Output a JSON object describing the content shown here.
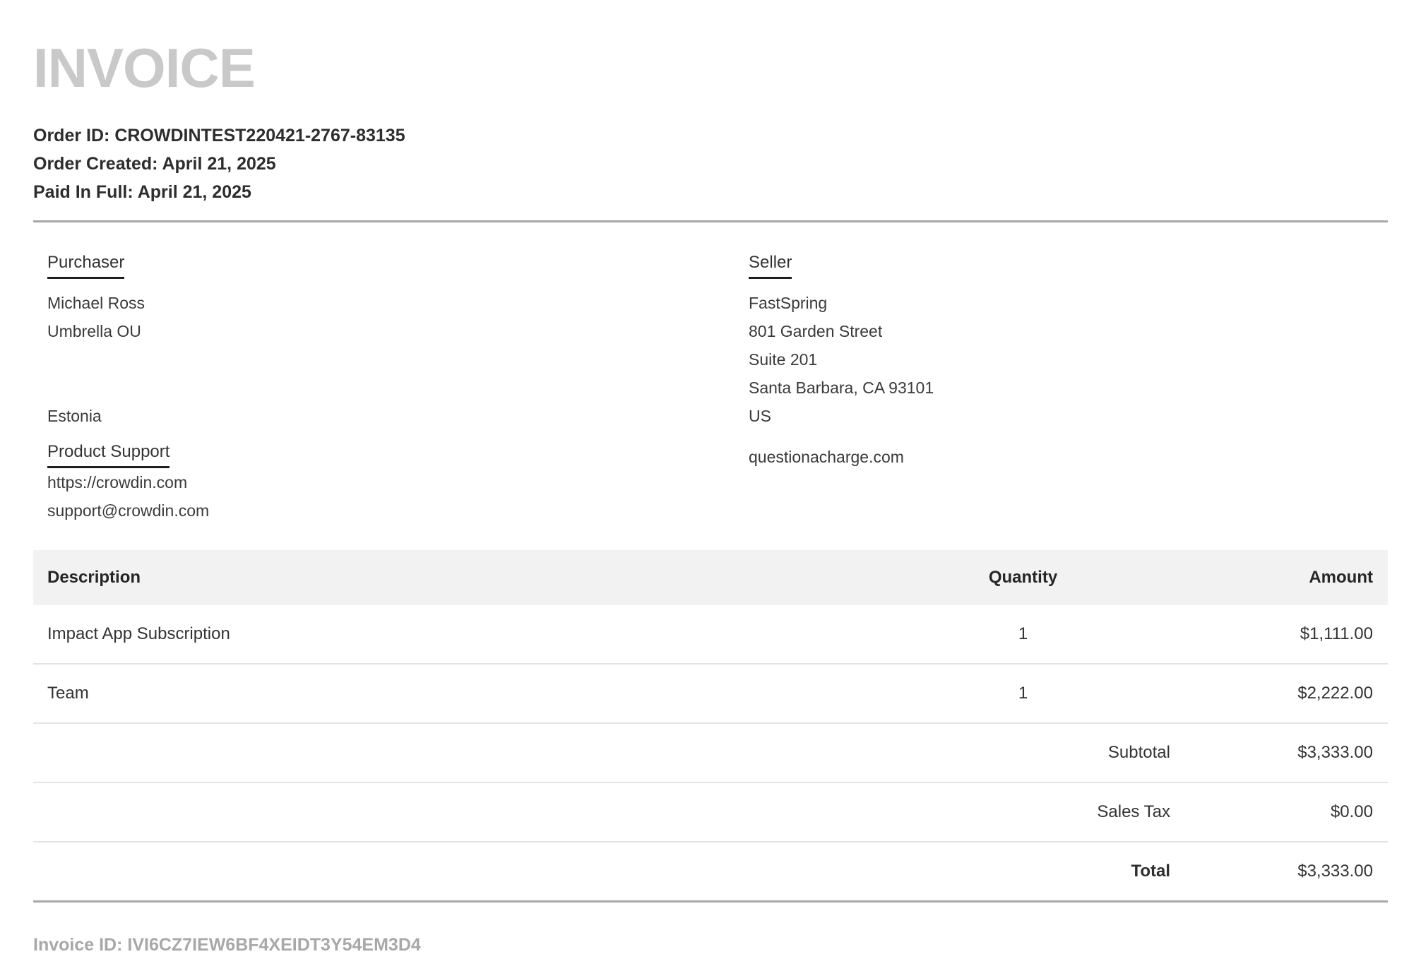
{
  "title": "INVOICE",
  "order": {
    "lines": [
      {
        "label": "Order ID:",
        "value": "CROWDINTEST220421-2767-83135"
      },
      {
        "label": "Order Created:",
        "value": "April 21, 2025"
      },
      {
        "label": "Paid In Full:",
        "value": "April 21, 2025"
      }
    ]
  },
  "purchaser": {
    "heading": "Purchaser",
    "name": "Michael Ross",
    "company": "Umbrella OU",
    "country": "Estonia",
    "support_heading": "Product Support",
    "support_url": "https://crowdin.com",
    "support_email": "support@crowdin.com"
  },
  "seller": {
    "heading": "Seller",
    "name": "FastSpring",
    "address_line1": "801 Garden Street",
    "address_line2": "Suite 201",
    "address_line3": "Santa Barbara, CA 93101",
    "country": "US",
    "statement_descriptor": "questionacharge.com"
  },
  "table": {
    "headers": {
      "description": "Description",
      "quantity": "Quantity",
      "amount": "Amount"
    },
    "rows": [
      {
        "description": "Impact App Subscription",
        "quantity": "1",
        "amount": "$1,111.00"
      },
      {
        "description": "Team",
        "quantity": "1",
        "amount": "$2,222.00"
      }
    ],
    "summary": [
      {
        "label": "Subtotal",
        "amount": "$3,333.00"
      },
      {
        "label": "Sales Tax",
        "amount": "$0.00"
      },
      {
        "label": "Total",
        "amount": "$3,333.00"
      }
    ]
  },
  "footer": {
    "invoice_id_label": "Invoice ID:",
    "invoice_id": "IVI6CZ7IEW6BF4XEIDT3Y54EM3D4"
  },
  "colors": {
    "title_gray": "#c9c9c9",
    "text_dark": "#2d2d2d",
    "body_text": "#3a3a3a",
    "table_header_bg": "#f2f2f2",
    "row_divider": "#e3e3e3",
    "section_divider": "#a7a7a7",
    "footer_gray": "#a8a8a8"
  }
}
